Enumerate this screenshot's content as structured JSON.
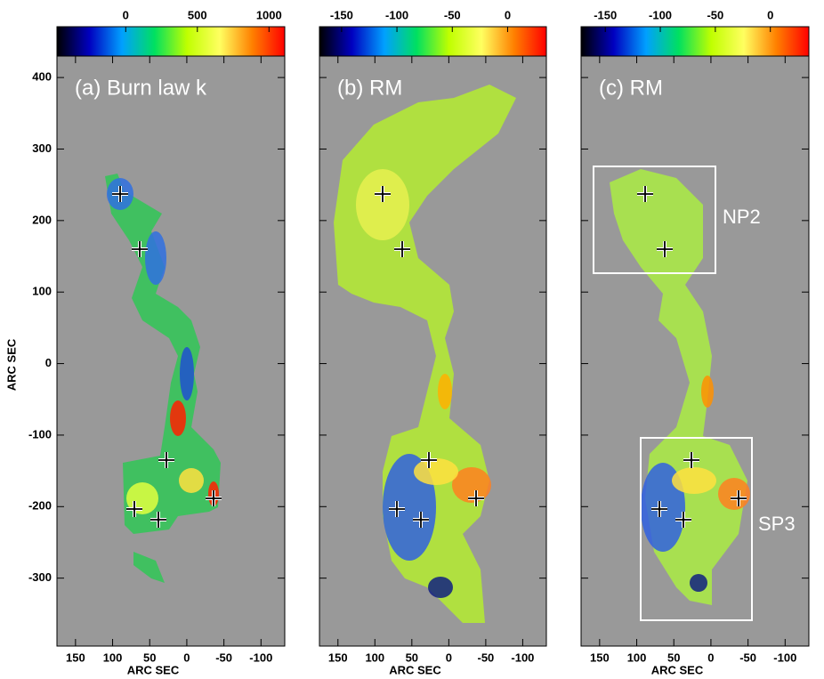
{
  "chart_data": [
    {
      "type": "image",
      "title": "(a) Burn law k",
      "xlabel": "ARC SEC",
      "ylabel": "ARC SEC",
      "xlim": [
        175,
        -132
      ],
      "ylim": [
        -395,
        430
      ],
      "xticks": [
        150,
        100,
        50,
        0,
        -50,
        -100
      ],
      "yticks": [
        -300,
        -200,
        -100,
        0,
        100,
        200,
        300,
        400
      ],
      "colorbar": {
        "lim": [
          -480,
          1110
        ],
        "ticks": [
          0,
          500,
          1000
        ],
        "colors": [
          "#000000",
          "#0000c0",
          "#00a0ff",
          "#00e060",
          "#c0ff00",
          "#ffff60",
          "#ff8000",
          "#ff0000"
        ]
      }
    },
    {
      "type": "image",
      "title": "(b) RM",
      "xlabel": "ARC SEC",
      "xlim": [
        175,
        -132
      ],
      "ylim": [
        -395,
        430
      ],
      "xticks": [
        150,
        100,
        50,
        0,
        -50,
        -100
      ],
      "yticks": [
        -300,
        -200,
        -100,
        0,
        100,
        200,
        300,
        400
      ],
      "colorbar": {
        "lim": [
          -170,
          35
        ],
        "ticks": [
          -150,
          -100,
          -50,
          0
        ],
        "colors": [
          "#000000",
          "#0000c0",
          "#00a0ff",
          "#00e060",
          "#c0ff00",
          "#ffff60",
          "#ff8000",
          "#ff0000"
        ]
      }
    },
    {
      "type": "image",
      "title": "(c) RM",
      "xlabel": "ARC SEC",
      "xlim": [
        175,
        -132
      ],
      "ylim": [
        -395,
        430
      ],
      "xticks": [
        150,
        100,
        50,
        0,
        -50,
        -100
      ],
      "yticks": [
        -300,
        -200,
        -100,
        0,
        100,
        200,
        300,
        400
      ],
      "colorbar": {
        "lim": [
          -172,
          35
        ],
        "ticks": [
          -150,
          -100,
          -50,
          0
        ],
        "colors": [
          "#000000",
          "#0000c0",
          "#00a0ff",
          "#00e060",
          "#c0ff00",
          "#ffff60",
          "#ff8000",
          "#ff0000"
        ]
      },
      "annotations": [
        "NP2",
        "SP3"
      ]
    }
  ]
}
